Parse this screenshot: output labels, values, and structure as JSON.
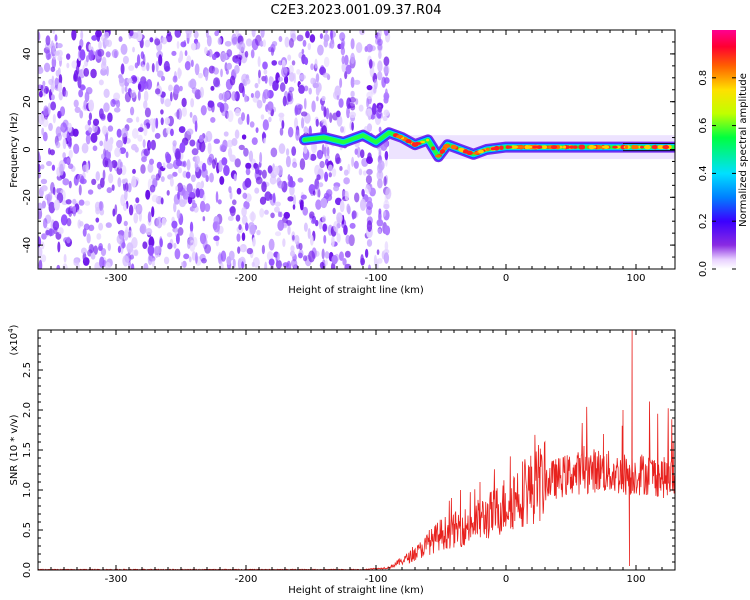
{
  "title": "C2E3.2023.001.09.37.R04",
  "chart_data": [
    {
      "type": "heatmap",
      "xlabel": "Height of straight line (km)",
      "ylabel": "Frequency (Hz)",
      "xlim": [
        -360,
        130
      ],
      "ylim": [
        -50,
        50
      ],
      "x_ticks": [
        -300,
        -200,
        -100,
        0,
        100
      ],
      "y_ticks": [
        -40,
        -20,
        0,
        20,
        40
      ],
      "colorbar": {
        "label": "Normalized spectral amplitude",
        "range": [
          0.0,
          1.0
        ],
        "ticks": [
          "0.0",
          "0.2",
          "0.4",
          "0.6",
          "0.8"
        ],
        "colormap": "rainbow"
      },
      "noise_region_x": [
        -360,
        -90
      ],
      "ridge": [
        {
          "x": -155,
          "y": 4
        },
        {
          "x": -140,
          "y": 5
        },
        {
          "x": -125,
          "y": 3
        },
        {
          "x": -110,
          "y": 6
        },
        {
          "x": -100,
          "y": 3
        },
        {
          "x": -90,
          "y": 7
        },
        {
          "x": -80,
          "y": 5
        },
        {
          "x": -70,
          "y": 2
        },
        {
          "x": -60,
          "y": 4
        },
        {
          "x": -52,
          "y": -3
        },
        {
          "x": -45,
          "y": 2
        },
        {
          "x": -35,
          "y": 0
        },
        {
          "x": -25,
          "y": -2
        },
        {
          "x": -15,
          "y": 0
        },
        {
          "x": 0,
          "y": 1
        },
        {
          "x": 20,
          "y": 1
        },
        {
          "x": 40,
          "y": 1
        },
        {
          "x": 60,
          "y": 1
        },
        {
          "x": 80,
          "y": 1
        },
        {
          "x": 100,
          "y": 1
        },
        {
          "x": 130,
          "y": 1
        }
      ]
    },
    {
      "type": "line",
      "xlabel": "Height of straight line (km)",
      "ylabel": "SNR (10 * v/v)",
      "multiplier": "(x10",
      "multiplier_exp": "4",
      "multiplier_close": ")",
      "xlim": [
        -360,
        130
      ],
      "ylim": [
        0,
        3.0
      ],
      "x_ticks": [
        -300,
        -200,
        -100,
        0,
        100
      ],
      "y_ticks": [
        "0.0",
        "0.5",
        "1.0",
        "1.5",
        "2.0",
        "2.5"
      ],
      "series": [
        {
          "color": "#e8221e",
          "envelope": [
            {
              "x": -360,
              "y": 0.0
            },
            {
              "x": -110,
              "y": 0.0
            },
            {
              "x": -90,
              "y": 0.03
            },
            {
              "x": -70,
              "y": 0.2
            },
            {
              "x": -50,
              "y": 0.45
            },
            {
              "x": -30,
              "y": 0.55
            },
            {
              "x": -10,
              "y": 0.7
            },
            {
              "x": 10,
              "y": 0.95
            },
            {
              "x": 30,
              "y": 1.1
            },
            {
              "x": 50,
              "y": 1.2
            },
            {
              "x": 70,
              "y": 1.25
            },
            {
              "x": 85,
              "y": 1.2
            },
            {
              "x": 95,
              "y": 1.2
            },
            {
              "x": 110,
              "y": 1.2
            },
            {
              "x": 130,
              "y": 1.12
            }
          ],
          "peaks": [
            {
              "x": -42,
              "y": 0.9
            },
            {
              "x": -35,
              "y": 1.0
            },
            {
              "x": -20,
              "y": 1.1
            },
            {
              "x": 60,
              "y": 1.55
            },
            {
              "x": 75,
              "y": 1.7
            },
            {
              "x": 90,
              "y": 2.0
            },
            {
              "x": 97,
              "y": 3.0
            },
            {
              "x": 95,
              "y": 0.05
            }
          ]
        }
      ]
    }
  ]
}
